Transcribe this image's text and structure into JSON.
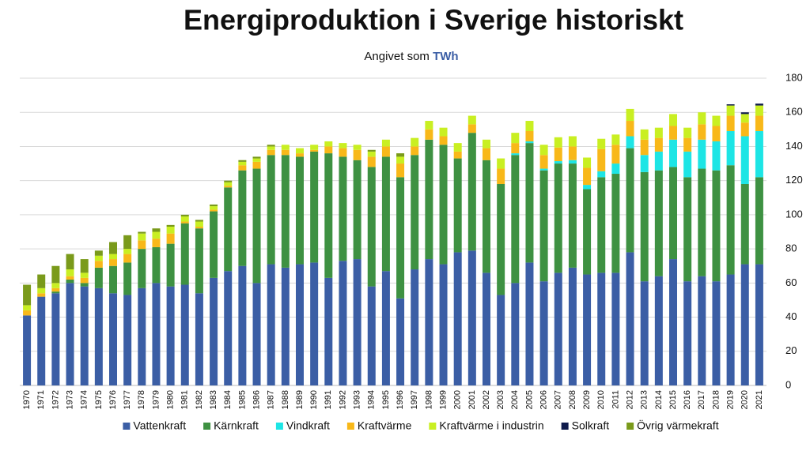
{
  "chart_data": {
    "type": "stacked_bar",
    "title": "Energiproduktion i Sverige historiskt",
    "subtitle": "Angivet som",
    "unit": "TWh",
    "categories": [
      "1970",
      "1971",
      "1972",
      "1973",
      "1974",
      "1975",
      "1976",
      "1977",
      "1978",
      "1979",
      "1980",
      "1981",
      "1982",
      "1983",
      "1984",
      "1985",
      "1986",
      "1987",
      "1988",
      "1989",
      "1990",
      "1991",
      "1992",
      "1993",
      "1994",
      "1995",
      "1996",
      "1997",
      "1998",
      "1999",
      "2000",
      "2001",
      "2002",
      "2003",
      "2004",
      "2005",
      "2006",
      "2007",
      "2008",
      "2009",
      "2010",
      "2011",
      "2012",
      "2013",
      "2014",
      "2015",
      "2016",
      "2017",
      "2018",
      "2019",
      "2020",
      "2021"
    ],
    "series": [
      {
        "name": "Vattenkraft",
        "color": "#3b5ea5",
        "values": [
          41,
          52,
          54,
          60,
          58,
          57,
          54,
          53,
          57,
          60,
          58,
          59,
          54,
          63,
          67,
          70,
          60,
          71,
          69,
          71,
          72,
          63,
          73,
          74,
          58,
          67,
          51,
          68,
          74,
          71,
          78,
          79,
          66,
          53,
          60,
          72,
          61,
          66,
          69,
          65,
          66,
          66,
          78,
          61,
          64,
          74,
          61,
          64,
          61,
          65,
          71,
          71
        ]
      },
      {
        "name": "Kärnkraft",
        "color": "#3e9142",
        "values": [
          0,
          0,
          1,
          2,
          2,
          12,
          16,
          19,
          23,
          21,
          25,
          36,
          38,
          39,
          49,
          56,
          67,
          64,
          66,
          63,
          65,
          73,
          61,
          58,
          70,
          67,
          71,
          67,
          70,
          70,
          55,
          69,
          66,
          65,
          75,
          70,
          65,
          64,
          61,
          50,
          56,
          58,
          61,
          64,
          62,
          54,
          61,
          63,
          65,
          64,
          47,
          51
        ]
      },
      {
        "name": "Vindkraft",
        "color": "#1de5e5",
        "values": [
          0,
          0,
          0,
          0,
          0,
          0,
          0,
          0,
          0,
          0,
          0,
          0,
          0,
          0,
          0,
          0,
          0,
          0,
          0,
          0,
          0,
          0,
          0,
          0,
          0,
          0,
          0,
          0,
          0,
          0,
          0,
          0,
          0,
          0,
          1,
          1,
          1,
          1.4,
          2,
          2.5,
          3.5,
          6,
          7,
          10,
          11,
          16,
          15,
          17,
          17,
          20,
          28,
          27
        ]
      },
      {
        "name": "Kraftvärme",
        "color": "#f8b819",
        "values": [
          3,
          2,
          2,
          2,
          3,
          4,
          4,
          5,
          5,
          5,
          6,
          1,
          1,
          1,
          1,
          3,
          4,
          3,
          3,
          2,
          1,
          4,
          5,
          6,
          6,
          6,
          8,
          5,
          6,
          5,
          4,
          5,
          7,
          9,
          6,
          6,
          8,
          8,
          8,
          10,
          13,
          11,
          9,
          9,
          8,
          8,
          8,
          9,
          9,
          9,
          8,
          9
        ]
      },
      {
        "name": "Kraftvärme i industrin",
        "color": "#c9ef22",
        "values": [
          3,
          3,
          3,
          4,
          3,
          3,
          3,
          3,
          4,
          4,
          4,
          3,
          3,
          2,
          2,
          2,
          2,
          2,
          3,
          3,
          3,
          3,
          3,
          3,
          3,
          4,
          4,
          5,
          5,
          5,
          5,
          5,
          5,
          6,
          6,
          6,
          6,
          6,
          6,
          6,
          6,
          6,
          7,
          6,
          6,
          7,
          6,
          7,
          6,
          6,
          5,
          6
        ]
      },
      {
        "name": "Solkraft",
        "color": "#0e1a4b",
        "values": [
          0,
          0,
          0,
          0,
          0,
          0,
          0,
          0,
          0,
          0,
          0,
          0,
          0,
          0,
          0,
          0,
          0,
          0,
          0,
          0,
          0,
          0,
          0,
          0,
          0,
          0,
          0,
          0,
          0,
          0,
          0,
          0,
          0,
          0,
          0,
          0,
          0,
          0,
          0,
          0,
          0,
          0,
          0,
          0,
          0,
          0,
          0,
          0,
          0,
          0.7,
          1,
          1.1
        ]
      },
      {
        "name": "Övrig värmekraft",
        "color": "#7a9a1b",
        "values": [
          12,
          8,
          10,
          9,
          8,
          3,
          7,
          8,
          1,
          2,
          1,
          1,
          1,
          1,
          1,
          1,
          1,
          1,
          0,
          0,
          0,
          0,
          0,
          0,
          1,
          0,
          2,
          0,
          0,
          0,
          0,
          0,
          0,
          0,
          0,
          0,
          0,
          0,
          0,
          0,
          0,
          0,
          0,
          0,
          0,
          0,
          0,
          0,
          0,
          0,
          0,
          0
        ]
      }
    ],
    "ylim": [
      0,
      180
    ],
    "yticks": [
      0,
      20,
      40,
      60,
      80,
      100,
      120,
      140,
      160,
      180
    ],
    "grid": true,
    "legend": "bottom"
  }
}
